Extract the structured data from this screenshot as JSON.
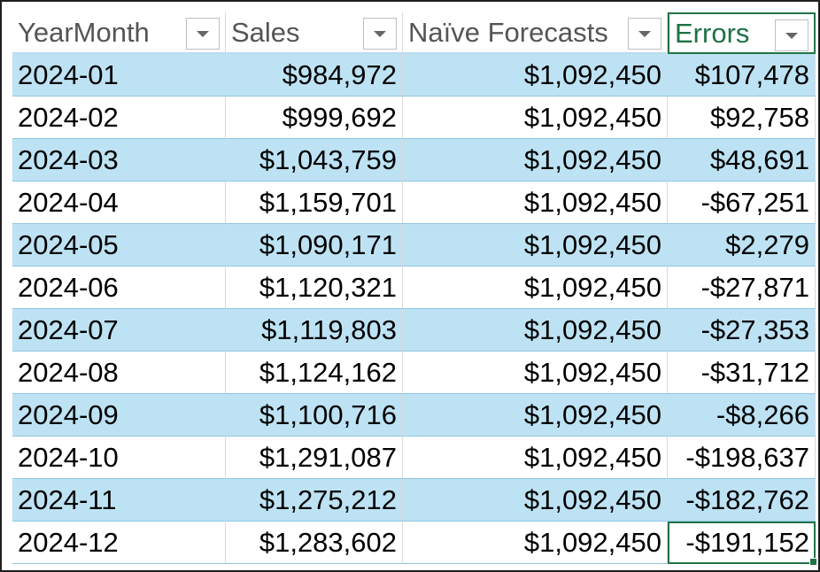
{
  "table": {
    "headers": [
      "YearMonth",
      "Sales",
      "Naïve Forecasts",
      "Errors"
    ],
    "rows": [
      [
        "2024-01",
        "$984,972",
        "$1,092,450",
        "$107,478"
      ],
      [
        "2024-02",
        "$999,692",
        "$1,092,450",
        "$92,758"
      ],
      [
        "2024-03",
        "$1,043,759",
        "$1,092,450",
        "$48,691"
      ],
      [
        "2024-04",
        "$1,159,701",
        "$1,092,450",
        "-$67,251"
      ],
      [
        "2024-05",
        "$1,090,171",
        "$1,092,450",
        "$2,279"
      ],
      [
        "2024-06",
        "$1,120,321",
        "$1,092,450",
        "-$27,871"
      ],
      [
        "2024-07",
        "$1,119,803",
        "$1,092,450",
        "-$27,353"
      ],
      [
        "2024-08",
        "$1,124,162",
        "$1,092,450",
        "-$31,712"
      ],
      [
        "2024-09",
        "$1,100,716",
        "$1,092,450",
        "-$8,266"
      ],
      [
        "2024-10",
        "$1,291,087",
        "$1,092,450",
        "-$198,637"
      ],
      [
        "2024-11",
        "$1,275,212",
        "$1,092,450",
        "-$182,762"
      ],
      [
        "2024-12",
        "$1,283,602",
        "$1,092,450",
        "-$191,152"
      ]
    ],
    "selected_cell": "Errors 2024-12",
    "colors": {
      "band": "#bde2f3",
      "selection": "#217346",
      "header_text": "#555555"
    }
  }
}
